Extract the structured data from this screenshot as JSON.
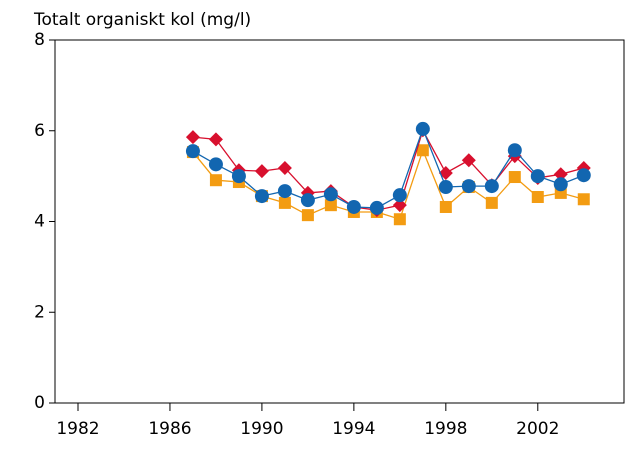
{
  "chart_data": {
    "type": "line",
    "title": "Totalt organiskt kol (mg/l)",
    "x": [
      1987,
      1988,
      1989,
      1990,
      1991,
      1992,
      1993,
      1994,
      1995,
      1996,
      1997,
      1998,
      1999,
      2000,
      2001,
      2002,
      2003,
      2004
    ],
    "series": [
      {
        "color": "#f39c12",
        "marker": "square",
        "values": [
          5.53,
          4.91,
          4.87,
          4.56,
          4.41,
          4.14,
          4.36,
          4.21,
          4.21,
          4.05,
          5.57,
          4.32,
          4.76,
          4.41,
          4.98,
          4.54,
          4.63,
          4.49
        ]
      },
      {
        "color": "#d8102e",
        "marker": "diamond",
        "values": [
          5.86,
          5.81,
          5.13,
          5.11,
          5.18,
          4.63,
          4.67,
          4.32,
          4.25,
          4.36,
          6.01,
          5.07,
          5.35,
          4.8,
          5.44,
          4.96,
          5.04,
          5.18
        ]
      },
      {
        "color": "#1266b0",
        "marker": "circle",
        "values": [
          5.55,
          5.26,
          5.0,
          4.56,
          4.67,
          4.47,
          4.6,
          4.32,
          4.3,
          4.58,
          6.04,
          4.76,
          4.78,
          4.78,
          5.57,
          5.0,
          4.82,
          5.02
        ]
      }
    ],
    "xlim": [
      1981,
      2005.75
    ],
    "xticks": [
      1982,
      1986,
      1990,
      1994,
      1998,
      2002
    ],
    "ylim": [
      0,
      8
    ],
    "yticks": [
      0,
      2,
      4,
      6,
      8
    ],
    "grid": false
  }
}
